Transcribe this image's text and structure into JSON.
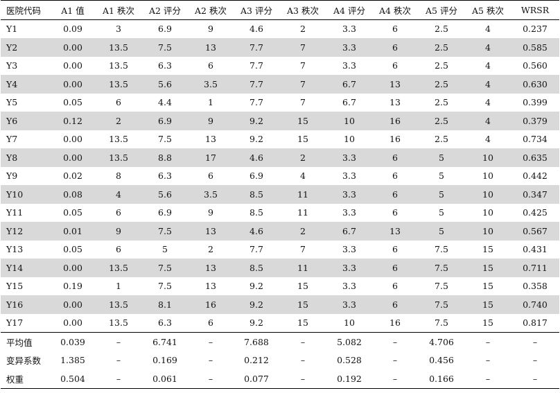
{
  "headers": [
    "医院代码",
    "A1 值",
    "A1 秩次",
    "A2 评分",
    "A2 秩次",
    "A3 评分",
    "A3 秩次",
    "A4 评分",
    "A4 秩次",
    "A5 评分",
    "A5 秩次",
    "WRSR"
  ],
  "rows": [
    [
      "Y1",
      "0.09",
      "3",
      "6.9",
      "9",
      "4.6",
      "2",
      "3.3",
      "6",
      "2.5",
      "4",
      "0.237"
    ],
    [
      "Y2",
      "0.00",
      "13.5",
      "7.5",
      "13",
      "7.7",
      "7",
      "3.3",
      "6",
      "2.5",
      "4",
      "0.585"
    ],
    [
      "Y3",
      "0.00",
      "13.5",
      "6.3",
      "6",
      "7.7",
      "7",
      "3.3",
      "6",
      "2.5",
      "4",
      "0.560"
    ],
    [
      "Y4",
      "0.00",
      "13.5",
      "5.6",
      "3.5",
      "7.7",
      "7",
      "6.7",
      "13",
      "2.5",
      "4",
      "0.630"
    ],
    [
      "Y5",
      "0.05",
      "6",
      "4.4",
      "1",
      "7.7",
      "7",
      "6.7",
      "13",
      "2.5",
      "4",
      "0.399"
    ],
    [
      "Y6",
      "0.12",
      "2",
      "6.9",
      "9",
      "9.2",
      "15",
      "10",
      "16",
      "2.5",
      "4",
      "0.379"
    ],
    [
      "Y7",
      "0.00",
      "13.5",
      "7.5",
      "13",
      "9.2",
      "15",
      "10",
      "16",
      "2.5",
      "4",
      "0.734"
    ],
    [
      "Y8",
      "0.00",
      "13.5",
      "8.8",
      "17",
      "4.6",
      "2",
      "3.3",
      "6",
      "5",
      "10",
      "0.635"
    ],
    [
      "Y9",
      "0.02",
      "8",
      "6.3",
      "6",
      "6.9",
      "4",
      "3.3",
      "6",
      "5",
      "10",
      "0.442"
    ],
    [
      "Y10",
      "0.08",
      "4",
      "5.6",
      "3.5",
      "8.5",
      "11",
      "3.3",
      "6",
      "5",
      "10",
      "0.347"
    ],
    [
      "Y11",
      "0.05",
      "6",
      "6.9",
      "9",
      "8.5",
      "11",
      "3.3",
      "6",
      "5",
      "10",
      "0.425"
    ],
    [
      "Y12",
      "0.01",
      "9",
      "7.5",
      "13",
      "4.6",
      "2",
      "6.7",
      "13",
      "5",
      "10",
      "0.567"
    ],
    [
      "Y13",
      "0.05",
      "6",
      "5",
      "2",
      "7.7",
      "7",
      "3.3",
      "6",
      "7.5",
      "15",
      "0.431"
    ],
    [
      "Y14",
      "0.00",
      "13.5",
      "7.5",
      "13",
      "8.5",
      "11",
      "3.3",
      "6",
      "7.5",
      "15",
      "0.711"
    ],
    [
      "Y15",
      "0.19",
      "1",
      "7.5",
      "13",
      "9.2",
      "15",
      "3.3",
      "6",
      "7.5",
      "15",
      "0.358"
    ],
    [
      "Y16",
      "0.00",
      "13.5",
      "8.1",
      "16",
      "9.2",
      "15",
      "3.3",
      "6",
      "7.5",
      "15",
      "0.740"
    ],
    [
      "Y17",
      "0.00",
      "13.5",
      "6.3",
      "6",
      "9.2",
      "15",
      "10",
      "16",
      "7.5",
      "15",
      "0.817"
    ]
  ],
  "summary": [
    [
      "平均值",
      "0.039",
      "–",
      "6.741",
      "–",
      "7.688",
      "–",
      "5.082",
      "–",
      "4.706",
      "–",
      "–"
    ],
    [
      "变异系数",
      "1.385",
      "–",
      "0.169",
      "–",
      "0.212",
      "–",
      "0.528",
      "–",
      "0.456",
      "–",
      "–"
    ],
    [
      "权重",
      "0.504",
      "–",
      "0.061",
      "–",
      "0.077",
      "–",
      "0.192",
      "–",
      "0.166",
      "–",
      "–"
    ]
  ],
  "colors": {
    "stripe": "#d9d9d9",
    "rule": "#000000"
  }
}
